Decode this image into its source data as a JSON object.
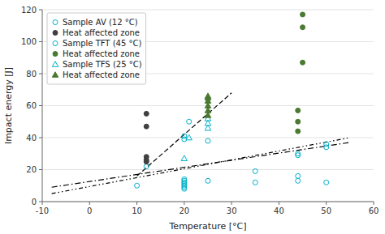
{
  "chart_data": {
    "type": "scatter",
    "xlabel": "Temperature [°C]",
    "ylabel": "Impact energy [J]",
    "xlim": [
      -10,
      60
    ],
    "ylim": [
      0,
      120
    ],
    "xticks": [
      -10,
      0,
      10,
      20,
      30,
      40,
      50,
      60
    ],
    "yticks": [
      0,
      20,
      40,
      60,
      80,
      100,
      120
    ],
    "grid": "y",
    "legend": "upper left",
    "series": [
      {
        "name": "Sample AV (12 °C)",
        "color": "#00b0c8",
        "marker": "circle-open",
        "x": [
          10,
          12,
          20,
          20,
          21,
          25,
          35,
          44,
          44,
          50,
          50
        ],
        "values": [
          10,
          22,
          39,
          41,
          50,
          38,
          19,
          16,
          30,
          34,
          36
        ]
      },
      {
        "name": "Heat affected zone",
        "color": "#404040",
        "marker": "circle",
        "x": [
          12,
          12,
          12,
          12,
          12
        ],
        "values": [
          25,
          26,
          28,
          47,
          55
        ]
      },
      {
        "name": "Sample TFT (45 °C)",
        "color": "#00b0c8",
        "marker": "circle-open",
        "x": [
          20,
          20,
          20,
          20,
          20,
          20,
          20,
          25,
          35,
          44,
          44,
          50
        ],
        "values": [
          8,
          9,
          10,
          11,
          12,
          13,
          14,
          13,
          12,
          13,
          29,
          12
        ]
      },
      {
        "name": "Heat affected zone",
        "color": "#4a7a30",
        "marker": "circle",
        "x": [
          44,
          44,
          44,
          45,
          45,
          45
        ],
        "values": [
          44,
          50,
          57,
          87,
          109,
          117
        ]
      },
      {
        "name": "Sample TFS (25 °C)",
        "color": "#00b0c8",
        "marker": "triangle-open",
        "x": [
          20,
          21,
          25,
          25,
          25
        ],
        "values": [
          27,
          40,
          46,
          49,
          52
        ]
      },
      {
        "name": "Heat affected zone",
        "color": "#4a7a30",
        "marker": "triangle",
        "x": [
          25,
          25,
          25,
          25,
          25,
          25
        ],
        "values": [
          54,
          57,
          60,
          63,
          65,
          66
        ]
      },
      {
        "type": "line",
        "color": "#000000",
        "line_style": "dashdot",
        "x": [
          -8,
          55
        ],
        "values": [
          9,
          37
        ]
      },
      {
        "type": "line",
        "color": "#000000",
        "line_style": "dashdotdot",
        "x": [
          -8,
          55
        ],
        "values": [
          5,
          40
        ]
      },
      {
        "type": "line",
        "color": "#000000",
        "line_style": "dashed",
        "x": [
          10,
          30
        ],
        "values": [
          16,
          68
        ]
      }
    ]
  }
}
